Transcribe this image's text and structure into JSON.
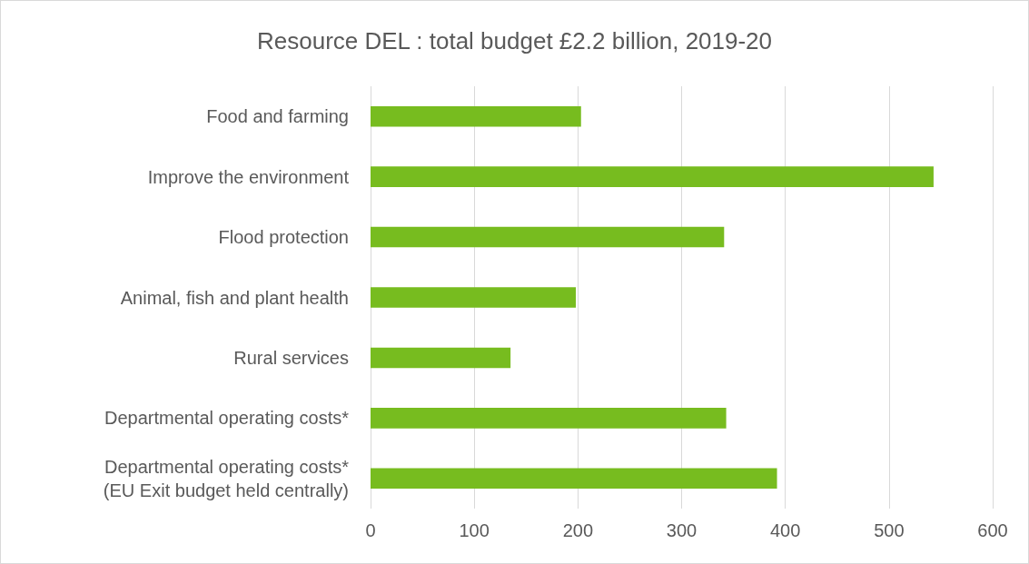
{
  "chart_data": {
    "type": "bar",
    "orientation": "horizontal",
    "title": "Resource DEL : total budget £2.2 billion, 2019-20",
    "categories": [
      "Food and farming",
      "Improve the environment",
      "Flood protection",
      "Animal, fish and plant health",
      "Rural services",
      "Departmental operating costs*",
      "Departmental operating costs*\n(EU Exit budget held centrally)"
    ],
    "values": [
      203,
      543,
      341,
      198,
      135,
      343,
      392
    ],
    "color": "#77bc1f",
    "xlim": [
      0,
      600
    ],
    "xticks": [
      0,
      100,
      200,
      300,
      400,
      500,
      600
    ],
    "grid": "x"
  }
}
